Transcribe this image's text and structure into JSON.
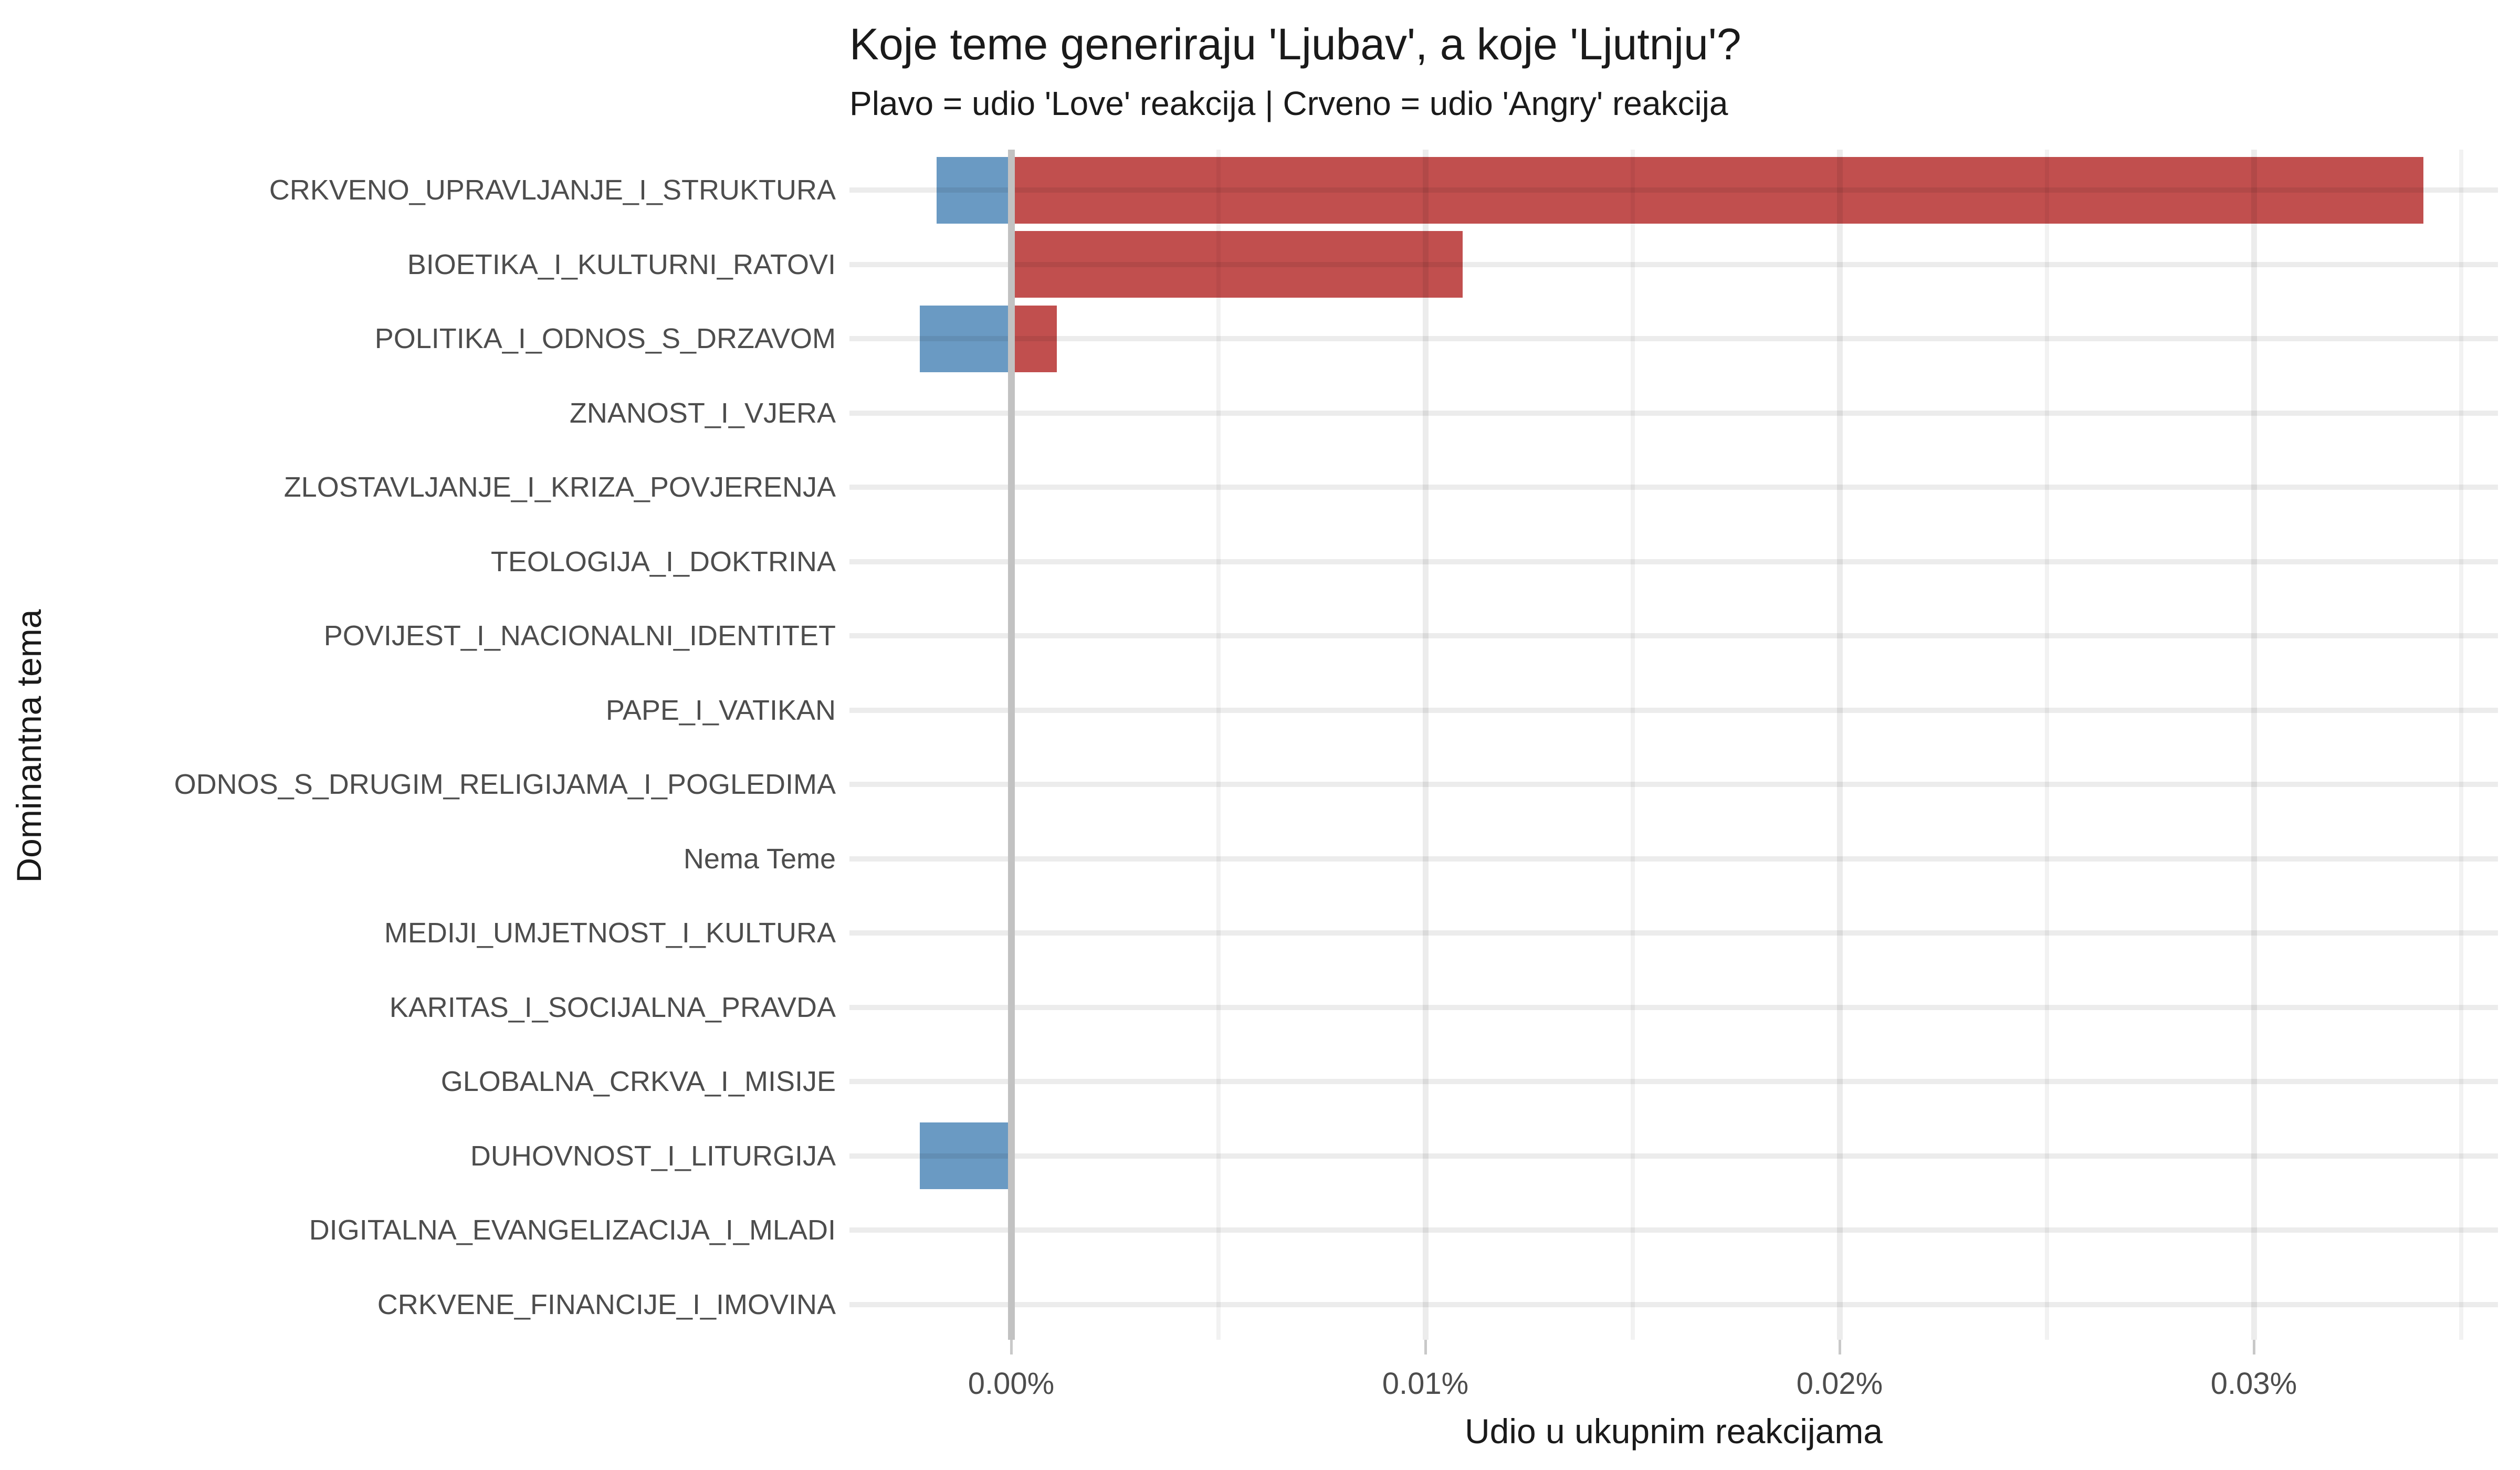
{
  "header": {
    "title": "Koje teme generiraju 'Ljubav', a koje 'Ljutnju'?",
    "subtitle": "Plavo = udio 'Love' reakcija | Crveno = udio 'Angry' reakcija"
  },
  "chart_data": {
    "type": "bar",
    "orientation": "horizontal",
    "diverging": true,
    "title": "Koje teme generiraju 'Ljubav', a koje 'Ljutnju'?",
    "subtitle": "Plavo = udio 'Love' reakcija | Crveno = udio 'Angry' reakcija",
    "xlabel": "Udio u ukupnim reakcijama",
    "ylabel": "Dominantna tema",
    "grid": true,
    "legend": "none",
    "x_unit": "percent of total reactions",
    "xlim_pct": [
      -0.0039,
      0.0359
    ],
    "x_ticks": [
      {
        "label": "0.00%",
        "value": 0.0
      },
      {
        "label": "0.01%",
        "value": 0.01
      },
      {
        "label": "0.02%",
        "value": 0.02
      },
      {
        "label": "0.03%",
        "value": 0.03
      }
    ],
    "x_minor_tick_values": [
      0.005,
      0.015,
      0.025,
      0.035
    ],
    "series": [
      {
        "name": "Love (Plavo)",
        "direction": "left",
        "color": "#6a9ac3"
      },
      {
        "name": "Angry (Crveno)",
        "direction": "right",
        "color": "#c14f4e"
      }
    ],
    "categories": [
      "CRKVENO_UPRAVLJANJE_I_STRUKTURA",
      "BIOETIKA_I_KULTURNI_RATOVI",
      "POLITIKA_I_ODNOS_S_DRZAVOM",
      "ZNANOST_I_VJERA",
      "ZLOSTAVLJANJE_I_KRIZA_POVJERENJA",
      "TEOLOGIJA_I_DOKTRINA",
      "POVIJEST_I_NACIONALNI_IDENTITET",
      "PAPE_I_VATIKAN",
      "ODNOS_S_DRUGIM_RELIGIJAMA_I_POGLEDIMA",
      "Nema Teme",
      "MEDIJI_UMJETNOST_I_KULTURA",
      "KARITAS_I_SOCIJALNA_PRAVDA",
      "GLOBALNA_CRKVA_I_MISIJE",
      "DUHOVNOST_I_LITURGIJA",
      "DIGITALNA_EVANGELIZACIJA_I_MLADI",
      "CRKVENE_FINANCIJE_I_IMOVINA"
    ],
    "love_pct": [
      0.0018,
      0.0,
      0.0022,
      0,
      0,
      0,
      0,
      0,
      0,
      0,
      0,
      0,
      0,
      0.0022,
      0,
      0
    ],
    "angry_pct": [
      0.0341,
      0.0109,
      0.0011,
      0,
      0,
      0,
      0,
      0,
      0,
      0,
      0,
      0,
      0,
      0.0,
      0,
      0
    ]
  },
  "colors": {
    "love_bar": "#6a9ac3",
    "angry_bar": "#c14f4e",
    "zero_line": "#c2c2c2",
    "axis_text": "#4d4d4d",
    "title_text": "#1a1a1a",
    "background": "#ffffff"
  }
}
